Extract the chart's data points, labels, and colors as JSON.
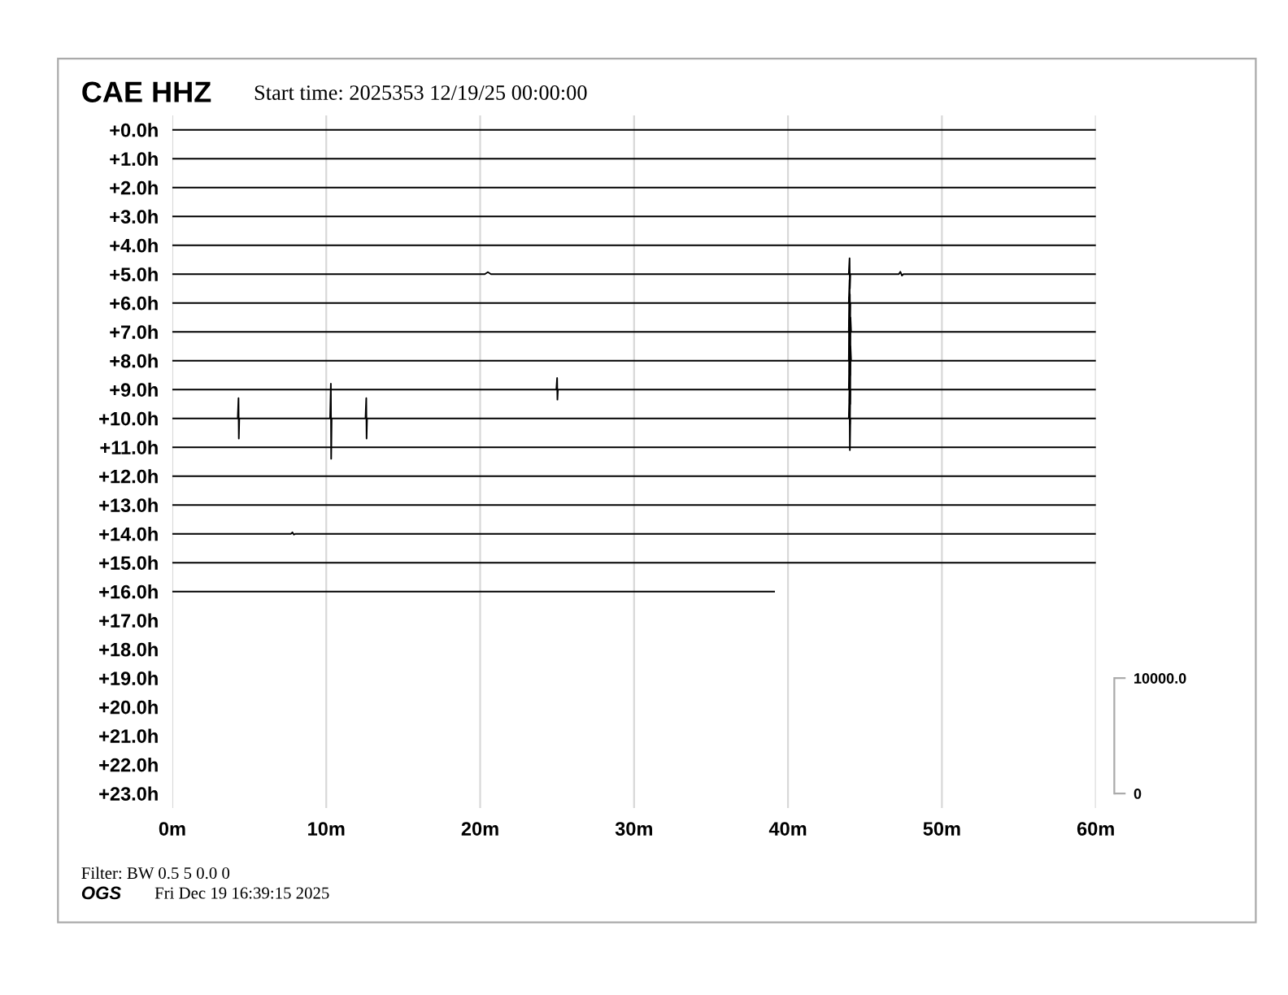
{
  "chart_data": {
    "type": "line",
    "title": "CAE HHZ",
    "subtitle": "Start time: 2025353 12/19/25 00:00:00",
    "annotations": [
      "Filter: BW 0.5 5 0.0 0",
      "OGS",
      "Fri Dec 19 16:39:15 2025"
    ],
    "xlim": [
      0,
      60
    ],
    "xticks": [
      {
        "value": 0,
        "label": "0m"
      },
      {
        "value": 10,
        "label": "10m"
      },
      {
        "value": 20,
        "label": "20m"
      },
      {
        "value": 30,
        "label": "30m"
      },
      {
        "value": 40,
        "label": "40m"
      },
      {
        "value": 50,
        "label": "50m"
      },
      {
        "value": 60,
        "label": "60m"
      }
    ],
    "ylim": [
      23.5,
      -0.5
    ],
    "yticks": [
      {
        "value": 0,
        "label": "+0.0h"
      },
      {
        "value": 1,
        "label": "+1.0h"
      },
      {
        "value": 2,
        "label": "+2.0h"
      },
      {
        "value": 3,
        "label": "+3.0h"
      },
      {
        "value": 4,
        "label": "+4.0h"
      },
      {
        "value": 5,
        "label": "+5.0h"
      },
      {
        "value": 6,
        "label": "+6.0h"
      },
      {
        "value": 7,
        "label": "+7.0h"
      },
      {
        "value": 8,
        "label": "+8.0h"
      },
      {
        "value": 9,
        "label": "+9.0h"
      },
      {
        "value": 10,
        "label": "+10.0h"
      },
      {
        "value": 11,
        "label": "+11.0h"
      },
      {
        "value": 12,
        "label": "+12.0h"
      },
      {
        "value": 13,
        "label": "+13.0h"
      },
      {
        "value": 14,
        "label": "+14.0h"
      },
      {
        "value": 15,
        "label": "+15.0h"
      },
      {
        "value": 16,
        "label": "+16.0h"
      },
      {
        "value": 17,
        "label": "+17.0h"
      },
      {
        "value": 18,
        "label": "+18.0h"
      },
      {
        "value": 19,
        "label": "+19.0h"
      },
      {
        "value": 20,
        "label": "+20.0h"
      },
      {
        "value": 21,
        "label": "+21.0h"
      },
      {
        "value": 22,
        "label": "+22.0h"
      },
      {
        "value": 23,
        "label": "+23.0h"
      }
    ],
    "y2lim": [
      -1250,
      58750
    ],
    "y2ticks": [
      0,
      {
        "value": 10000,
        "label": "10000.0"
      }
    ],
    "grid": "x",
    "legend": false,
    "marker": "none",
    "line_style": "solid",
    "series": [
      {
        "color": "#000000",
        "x": [
          0,
          60
        ],
        "values": [
          0,
          0
        ]
      },
      {
        "color": "#000000",
        "x": [
          0,
          60
        ],
        "values": [
          1,
          1
        ]
      },
      {
        "color": "#000000",
        "x": [
          0,
          60
        ],
        "values": [
          2,
          2
        ]
      },
      {
        "color": "#000000",
        "x": [
          0,
          60
        ],
        "values": [
          3,
          3
        ]
      },
      {
        "color": "#000000",
        "x": [
          0,
          60
        ],
        "values": [
          4,
          4
        ]
      },
      {
        "color": "#000000",
        "x": [
          0,
          20.3,
          20.5,
          20.7,
          43.95,
          44.0,
          44.02,
          44.05,
          47.2,
          47.3,
          47.4,
          47.5,
          60
        ],
        "values": [
          5,
          5,
          4.93,
          5,
          5,
          4.45,
          5.5,
          5,
          5,
          4.92,
          5.05,
          5,
          5
        ]
      },
      {
        "color": "#000000",
        "x": [
          0,
          43.95,
          44.0,
          44.02,
          44.05,
          60
        ],
        "values": [
          6,
          6,
          5.2,
          6.9,
          6,
          6
        ]
      },
      {
        "color": "#000000",
        "x": [
          0,
          43.95,
          43.98,
          44.0,
          44.02,
          44.04,
          44.06,
          44.1,
          60
        ],
        "values": [
          7,
          7,
          5.8,
          8.4,
          5.7,
          8.5,
          6.5,
          7,
          7
        ]
      },
      {
        "color": "#000000",
        "x": [
          0,
          43.95,
          43.98,
          44.0,
          44.02,
          44.04,
          44.06,
          44.1,
          60
        ],
        "values": [
          8,
          8,
          6.6,
          9.4,
          6.5,
          9.5,
          7.5,
          8,
          8
        ]
      },
      {
        "color": "#000000",
        "x": [
          0,
          24.95,
          25.0,
          25.02,
          25.05,
          43.95,
          44.0,
          44.02,
          44.05,
          60
        ],
        "values": [
          9,
          9,
          8.6,
          9.35,
          9,
          9,
          7.8,
          10.2,
          9,
          9
        ]
      },
      {
        "color": "#000000",
        "x": [
          0,
          4.25,
          4.3,
          4.32,
          4.35,
          10.25,
          10.3,
          10.32,
          10.35,
          12.55,
          12.6,
          12.62,
          12.65,
          43.95,
          44.0,
          44.02,
          44.05,
          60
        ],
        "values": [
          10,
          10,
          9.3,
          10.7,
          10,
          10,
          8.8,
          11.4,
          10,
          10,
          9.3,
          10.7,
          10,
          10,
          9.0,
          11.1,
          10,
          10
        ]
      },
      {
        "color": "#000000",
        "x": [
          0,
          60
        ],
        "values": [
          11,
          11
        ]
      },
      {
        "color": "#000000",
        "x": [
          0,
          60
        ],
        "values": [
          12,
          12
        ]
      },
      {
        "color": "#000000",
        "x": [
          0,
          60
        ],
        "values": [
          13,
          13
        ]
      },
      {
        "color": "#000000",
        "x": [
          0,
          7.7,
          7.8,
          7.9,
          8.0,
          60
        ],
        "values": [
          14,
          14,
          13.95,
          14.03,
          14,
          14
        ]
      },
      {
        "color": "#000000",
        "x": [
          0,
          60
        ],
        "values": [
          15,
          15
        ]
      },
      {
        "color": "#000000",
        "x": [
          0,
          39.1
        ],
        "values": [
          16,
          16
        ]
      }
    ]
  }
}
